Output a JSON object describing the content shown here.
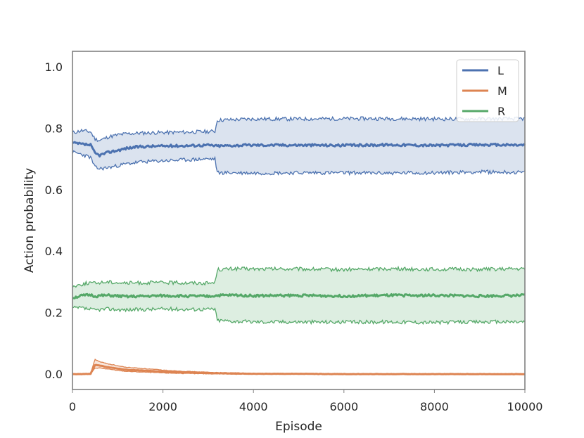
{
  "chart_data": {
    "type": "line",
    "title": "",
    "xlabel": "Episode",
    "ylabel": "Action probability",
    "xlim": [
      0,
      10000
    ],
    "ylim": [
      -0.05,
      1.05
    ],
    "xticks": [
      0,
      2000,
      4000,
      6000,
      8000,
      10000
    ],
    "yticks": [
      0.0,
      0.2,
      0.4,
      0.6,
      0.8,
      1.0
    ],
    "xtick_labels": [
      "0",
      "2000",
      "4000",
      "6000",
      "8000",
      "10000"
    ],
    "ytick_labels": [
      "0.0",
      "0.2",
      "0.4",
      "0.6",
      "0.8",
      "1.0"
    ],
    "grid": false,
    "legend_position": "top-right",
    "x": [
      0,
      200,
      400,
      500,
      600,
      800,
      1000,
      1200,
      1500,
      2000,
      2500,
      3000,
      3150,
      3200,
      3600,
      4000,
      5000,
      6000,
      7000,
      8000,
      9000,
      10000
    ],
    "series": [
      {
        "name": "L",
        "color": "#4c72b0",
        "mean": [
          0.752,
          0.748,
          0.745,
          0.718,
          0.712,
          0.722,
          0.728,
          0.735,
          0.74,
          0.742,
          0.743,
          0.745,
          0.743,
          0.742,
          0.744,
          0.745,
          0.745,
          0.744,
          0.746,
          0.744,
          0.746,
          0.745
        ],
        "lower": [
          0.722,
          0.715,
          0.705,
          0.672,
          0.668,
          0.672,
          0.678,
          0.684,
          0.69,
          0.694,
          0.697,
          0.7,
          0.7,
          0.655,
          0.655,
          0.654,
          0.655,
          0.655,
          0.654,
          0.655,
          0.658,
          0.656
        ],
        "upper": [
          0.785,
          0.792,
          0.788,
          0.765,
          0.76,
          0.772,
          0.778,
          0.782,
          0.784,
          0.786,
          0.787,
          0.789,
          0.79,
          0.826,
          0.828,
          0.83,
          0.83,
          0.831,
          0.831,
          0.83,
          0.83,
          0.831
        ]
      },
      {
        "name": "M",
        "color": "#dd8452",
        "mean": [
          0.0,
          0.0,
          0.001,
          0.03,
          0.028,
          0.022,
          0.018,
          0.014,
          0.012,
          0.008,
          0.005,
          0.004,
          0.003,
          0.003,
          0.002,
          0.001,
          0.001,
          0.0,
          0.0,
          0.0,
          0.0,
          0.0
        ],
        "lower": [
          0.0,
          0.0,
          0.0,
          0.02,
          0.02,
          0.016,
          0.012,
          0.009,
          0.007,
          0.004,
          0.002,
          0.001,
          0.001,
          0.001,
          0.0,
          0.0,
          0.0,
          0.0,
          0.0,
          0.0,
          0.0,
          0.0
        ],
        "upper": [
          0.0,
          0.0,
          0.002,
          0.048,
          0.04,
          0.033,
          0.027,
          0.022,
          0.019,
          0.013,
          0.009,
          0.006,
          0.005,
          0.005,
          0.004,
          0.002,
          0.001,
          0.001,
          0.0,
          0.0,
          0.0,
          0.0
        ]
      },
      {
        "name": "R",
        "color": "#55a868",
        "mean": [
          0.248,
          0.255,
          0.258,
          0.253,
          0.255,
          0.256,
          0.254,
          0.252,
          0.253,
          0.255,
          0.254,
          0.253,
          0.255,
          0.256,
          0.257,
          0.255,
          0.256,
          0.254,
          0.256,
          0.256,
          0.254,
          0.256
        ],
        "lower": [
          0.215,
          0.215,
          0.21,
          0.208,
          0.21,
          0.212,
          0.21,
          0.209,
          0.21,
          0.212,
          0.211,
          0.211,
          0.212,
          0.175,
          0.172,
          0.17,
          0.17,
          0.169,
          0.17,
          0.168,
          0.17,
          0.17
        ],
        "upper": [
          0.285,
          0.292,
          0.298,
          0.295,
          0.298,
          0.3,
          0.298,
          0.296,
          0.297,
          0.298,
          0.297,
          0.296,
          0.298,
          0.34,
          0.343,
          0.342,
          0.342,
          0.34,
          0.343,
          0.341,
          0.341,
          0.342
        ]
      }
    ]
  }
}
